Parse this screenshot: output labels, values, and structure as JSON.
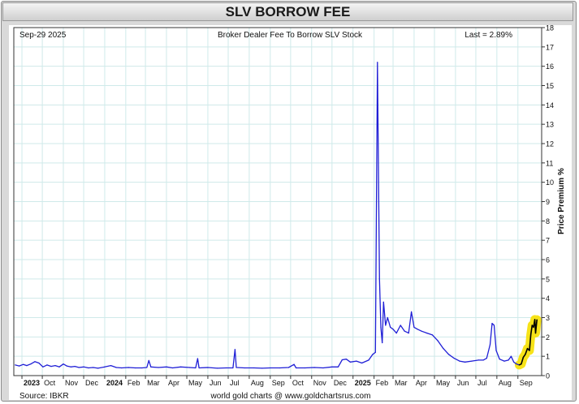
{
  "title": "SLV BORROW FEE",
  "header": {
    "date": "Sep-29  2025",
    "subtitle": "Broker Dealer Fee To Borrow SLV Stock",
    "last": "Last = 2.89%"
  },
  "footer": {
    "source": "Source: IBKR",
    "credit": "world gold charts @ www.goldchartsrus.com"
  },
  "colors": {
    "line": "#1f1fd6",
    "recent_line": "#000000",
    "highlight": "#f6e000",
    "grid": "#cfeaea"
  },
  "chart_data": {
    "type": "line",
    "title": "Broker Dealer Fee To Borrow SLV Stock",
    "ylabel": "Price Premium %",
    "xlabel": "",
    "ylim": [
      0,
      18
    ],
    "y_ticks": [
      0,
      1,
      2,
      3,
      4,
      5,
      6,
      7,
      8,
      9,
      10,
      11,
      12,
      13,
      14,
      15,
      16,
      17,
      18
    ],
    "y_axis_position": "right",
    "grid": true,
    "x_range": [
      "2023-08-20",
      "2025-10-06"
    ],
    "x_ticks": [
      {
        "date": "2023-09-01",
        "label": "2023",
        "bold": true
      },
      {
        "date": "2023-10-01",
        "label": "Oct",
        "bold": false
      },
      {
        "date": "2023-11-01",
        "label": "Nov",
        "bold": false
      },
      {
        "date": "2023-12-01",
        "label": "Dec",
        "bold": false
      },
      {
        "date": "2024-01-01",
        "label": "2024",
        "bold": true
      },
      {
        "date": "2024-02-01",
        "label": "Feb",
        "bold": false
      },
      {
        "date": "2024-03-01",
        "label": "Mar",
        "bold": false
      },
      {
        "date": "2024-04-01",
        "label": "Apr",
        "bold": false
      },
      {
        "date": "2024-05-01",
        "label": "May",
        "bold": false
      },
      {
        "date": "2024-06-01",
        "label": "Jun",
        "bold": false
      },
      {
        "date": "2024-07-01",
        "label": "Jul",
        "bold": false
      },
      {
        "date": "2024-08-01",
        "label": "Aug",
        "bold": false
      },
      {
        "date": "2024-09-01",
        "label": "Sep",
        "bold": false
      },
      {
        "date": "2024-10-01",
        "label": "Oct",
        "bold": false
      },
      {
        "date": "2024-11-01",
        "label": "Nov",
        "bold": false
      },
      {
        "date": "2024-12-01",
        "label": "Dec",
        "bold": false
      },
      {
        "date": "2025-01-01",
        "label": "2025",
        "bold": true
      },
      {
        "date": "2025-02-01",
        "label": "Feb",
        "bold": false
      },
      {
        "date": "2025-03-01",
        "label": "Mar",
        "bold": false
      },
      {
        "date": "2025-04-01",
        "label": "Apr",
        "bold": false
      },
      {
        "date": "2025-05-01",
        "label": "May",
        "bold": false
      },
      {
        "date": "2025-06-01",
        "label": "Jun",
        "bold": false
      },
      {
        "date": "2025-07-01",
        "label": "Jul",
        "bold": false
      },
      {
        "date": "2025-08-01",
        "label": "Aug",
        "bold": false
      },
      {
        "date": "2025-09-01",
        "label": "Sep",
        "bold": false
      }
    ],
    "series": [
      {
        "points": [
          [
            "2023-08-22",
            0.55
          ],
          [
            "2023-08-28",
            0.5
          ],
          [
            "2023-09-03",
            0.58
          ],
          [
            "2023-09-08",
            0.52
          ],
          [
            "2023-09-14",
            0.6
          ],
          [
            "2023-09-20",
            0.72
          ],
          [
            "2023-09-26",
            0.65
          ],
          [
            "2023-10-02",
            0.45
          ],
          [
            "2023-10-08",
            0.55
          ],
          [
            "2023-10-14",
            0.48
          ],
          [
            "2023-10-20",
            0.52
          ],
          [
            "2023-10-26",
            0.45
          ],
          [
            "2023-11-01",
            0.6
          ],
          [
            "2023-11-06",
            0.5
          ],
          [
            "2023-11-12",
            0.45
          ],
          [
            "2023-11-18",
            0.48
          ],
          [
            "2023-11-24",
            0.42
          ],
          [
            "2023-12-01",
            0.45
          ],
          [
            "2023-12-08",
            0.4
          ],
          [
            "2023-12-15",
            0.42
          ],
          [
            "2023-12-22",
            0.38
          ],
          [
            "2024-01-01",
            0.45
          ],
          [
            "2024-01-10",
            0.52
          ],
          [
            "2024-01-18",
            0.42
          ],
          [
            "2024-01-26",
            0.4
          ],
          [
            "2024-02-05",
            0.42
          ],
          [
            "2024-02-15",
            0.4
          ],
          [
            "2024-02-25",
            0.4
          ],
          [
            "2024-03-03",
            0.42
          ],
          [
            "2024-03-06",
            0.78
          ],
          [
            "2024-03-09",
            0.45
          ],
          [
            "2024-03-20",
            0.42
          ],
          [
            "2024-04-01",
            0.45
          ],
          [
            "2024-04-10",
            0.4
          ],
          [
            "2024-04-22",
            0.45
          ],
          [
            "2024-05-05",
            0.42
          ],
          [
            "2024-05-14",
            0.4
          ],
          [
            "2024-05-17",
            0.88
          ],
          [
            "2024-05-19",
            0.4
          ],
          [
            "2024-06-01",
            0.42
          ],
          [
            "2024-06-15",
            0.38
          ],
          [
            "2024-06-28",
            0.4
          ],
          [
            "2024-07-08",
            0.4
          ],
          [
            "2024-07-11",
            1.35
          ],
          [
            "2024-07-13",
            0.42
          ],
          [
            "2024-07-25",
            0.4
          ],
          [
            "2024-08-08",
            0.4
          ],
          [
            "2024-08-20",
            0.38
          ],
          [
            "2024-09-01",
            0.4
          ],
          [
            "2024-09-15",
            0.4
          ],
          [
            "2024-09-28",
            0.42
          ],
          [
            "2024-10-06",
            0.58
          ],
          [
            "2024-10-09",
            0.4
          ],
          [
            "2024-10-22",
            0.4
          ],
          [
            "2024-11-05",
            0.42
          ],
          [
            "2024-11-18",
            0.4
          ],
          [
            "2024-12-01",
            0.45
          ],
          [
            "2024-12-10",
            0.45
          ],
          [
            "2024-12-16",
            0.82
          ],
          [
            "2024-12-22",
            0.85
          ],
          [
            "2024-12-28",
            0.7
          ],
          [
            "2025-01-06",
            0.75
          ],
          [
            "2025-01-14",
            0.65
          ],
          [
            "2025-01-24",
            0.8
          ],
          [
            "2025-01-30",
            1.1
          ],
          [
            "2025-02-03",
            1.2
          ],
          [
            "2025-02-06",
            16.2
          ],
          [
            "2025-02-09",
            5.0
          ],
          [
            "2025-02-11",
            2.5
          ],
          [
            "2025-02-13",
            1.7
          ],
          [
            "2025-02-15",
            3.8
          ],
          [
            "2025-02-18",
            2.6
          ],
          [
            "2025-02-21",
            3.0
          ],
          [
            "2025-02-25",
            2.5
          ],
          [
            "2025-03-01",
            2.4
          ],
          [
            "2025-03-06",
            2.2
          ],
          [
            "2025-03-12",
            2.6
          ],
          [
            "2025-03-18",
            2.3
          ],
          [
            "2025-03-24",
            2.2
          ],
          [
            "2025-03-28",
            3.3
          ],
          [
            "2025-04-01",
            2.5
          ],
          [
            "2025-04-06",
            2.4
          ],
          [
            "2025-04-12",
            2.3
          ],
          [
            "2025-04-20",
            2.2
          ],
          [
            "2025-04-28",
            2.1
          ],
          [
            "2025-05-06",
            1.8
          ],
          [
            "2025-05-14",
            1.4
          ],
          [
            "2025-05-22",
            1.1
          ],
          [
            "2025-05-30",
            0.9
          ],
          [
            "2025-06-07",
            0.75
          ],
          [
            "2025-06-15",
            0.7
          ],
          [
            "2025-06-25",
            0.75
          ],
          [
            "2025-07-05",
            0.8
          ],
          [
            "2025-07-12",
            0.8
          ],
          [
            "2025-07-17",
            0.9
          ],
          [
            "2025-07-22",
            1.6
          ],
          [
            "2025-07-25",
            2.7
          ],
          [
            "2025-07-28",
            2.6
          ],
          [
            "2025-07-31",
            1.3
          ],
          [
            "2025-08-05",
            0.85
          ],
          [
            "2025-08-12",
            0.75
          ],
          [
            "2025-08-18",
            0.8
          ],
          [
            "2025-08-22",
            1.0
          ],
          [
            "2025-08-26",
            0.7
          ],
          [
            "2025-08-30",
            0.6
          ],
          [
            "2025-09-03",
            0.55
          ]
        ]
      },
      {
        "points": [
          [
            "2025-09-03",
            0.55
          ],
          [
            "2025-09-06",
            0.6
          ],
          [
            "2025-09-09",
            0.95
          ],
          [
            "2025-09-12",
            1.1
          ],
          [
            "2025-09-15",
            1.4
          ],
          [
            "2025-09-18",
            1.3
          ],
          [
            "2025-09-20",
            2.1
          ],
          [
            "2025-09-22",
            2.6
          ],
          [
            "2025-09-24",
            2.5
          ],
          [
            "2025-09-26",
            2.9
          ],
          [
            "2025-09-27",
            2.2
          ],
          [
            "2025-09-29",
            2.89
          ]
        ]
      }
    ],
    "highlight": {
      "note": "yellow highlight over September 2025 segment",
      "from": "2025-09-01",
      "to": "2025-09-30"
    }
  }
}
